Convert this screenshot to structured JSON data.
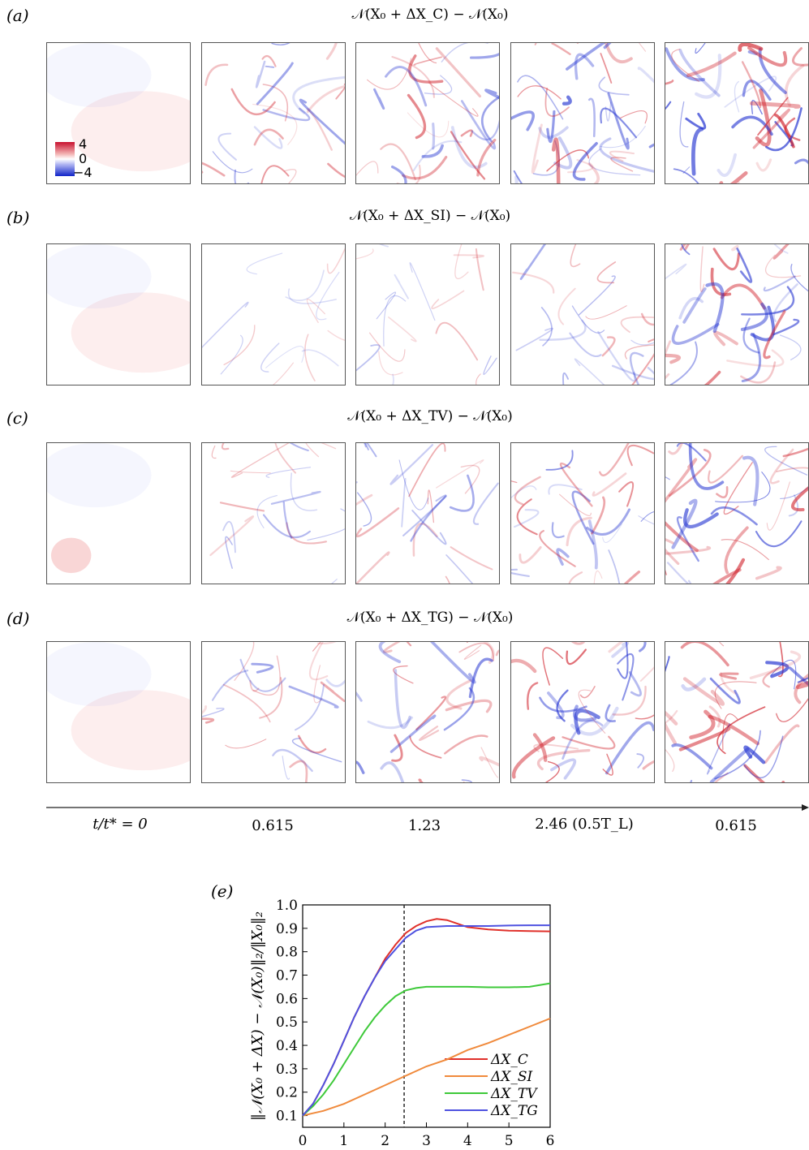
{
  "panels": [
    {
      "label": "(a)",
      "title": "𝒩(X₀ + ΔX_C) − 𝒩(X₀)"
    },
    {
      "label": "(b)",
      "title": "𝒩(X₀ + ΔX_SI) − 𝒩(X₀)"
    },
    {
      "label": "(c)",
      "title": "𝒩(X₀ + ΔX_TV) − 𝒩(X₀)"
    },
    {
      "label": "(d)",
      "title": "𝒩(X₀ + ΔX_TG) − 𝒩(X₀)"
    }
  ],
  "colorbar": {
    "max": "4",
    "mid": "0",
    "min": "−4"
  },
  "time_ticks": [
    "t/t* = 0",
    "0.615",
    "1.23",
    "2.46 (0.5T_L)",
    "0.615"
  ],
  "chart_data": {
    "type": "line",
    "panel_label": "(e)",
    "xlabel": "t/t*",
    "ylabel": "‖𝒩(X₀ + ΔX) − 𝒩(X₀)‖₂/‖X₀‖₂",
    "xlim": [
      0,
      6
    ],
    "ylim": [
      0.05,
      1.0
    ],
    "xticks": [
      0,
      1,
      2,
      3,
      4,
      5,
      6
    ],
    "yticks": [
      0.1,
      0.2,
      0.3,
      0.4,
      0.5,
      0.6,
      0.7,
      0.8,
      0.9,
      1.0
    ],
    "vline": 2.46,
    "legend_position": "bottom-right",
    "series": [
      {
        "name": "ΔX_C",
        "color": "#e0302a",
        "x": [
          0,
          0.25,
          0.5,
          0.75,
          1,
          1.25,
          1.5,
          1.75,
          2,
          2.25,
          2.5,
          2.75,
          3,
          3.25,
          3.5,
          3.75,
          4,
          4.5,
          5,
          5.5,
          6
        ],
        "y": [
          0.1,
          0.15,
          0.23,
          0.32,
          0.42,
          0.52,
          0.61,
          0.69,
          0.77,
          0.83,
          0.88,
          0.91,
          0.93,
          0.94,
          0.935,
          0.92,
          0.905,
          0.895,
          0.89,
          0.888,
          0.887
        ]
      },
      {
        "name": "ΔX_SI",
        "color": "#f08a3c",
        "x": [
          0,
          0.25,
          0.5,
          1,
          1.5,
          2,
          2.5,
          3,
          3.5,
          4,
          4.5,
          5,
          5.5,
          6
        ],
        "y": [
          0.1,
          0.11,
          0.12,
          0.15,
          0.19,
          0.23,
          0.27,
          0.31,
          0.34,
          0.38,
          0.41,
          0.445,
          0.48,
          0.515
        ]
      },
      {
        "name": "ΔX_TV",
        "color": "#3ec93a",
        "x": [
          0,
          0.25,
          0.5,
          0.75,
          1,
          1.25,
          1.5,
          1.75,
          2,
          2.25,
          2.5,
          2.75,
          3,
          3.5,
          4,
          4.5,
          5,
          5.5,
          6
        ],
        "y": [
          0.1,
          0.14,
          0.19,
          0.25,
          0.32,
          0.39,
          0.46,
          0.52,
          0.57,
          0.61,
          0.635,
          0.645,
          0.65,
          0.65,
          0.65,
          0.648,
          0.648,
          0.65,
          0.665
        ]
      },
      {
        "name": "ΔX_TG",
        "color": "#4f52e0",
        "x": [
          0,
          0.25,
          0.5,
          0.75,
          1,
          1.25,
          1.5,
          1.75,
          2,
          2.25,
          2.5,
          2.75,
          3,
          3.5,
          4,
          4.5,
          5,
          5.5,
          6
        ],
        "y": [
          0.1,
          0.15,
          0.23,
          0.32,
          0.42,
          0.52,
          0.61,
          0.69,
          0.76,
          0.81,
          0.86,
          0.89,
          0.905,
          0.91,
          0.91,
          0.91,
          0.912,
          0.913,
          0.913
        ]
      }
    ]
  }
}
